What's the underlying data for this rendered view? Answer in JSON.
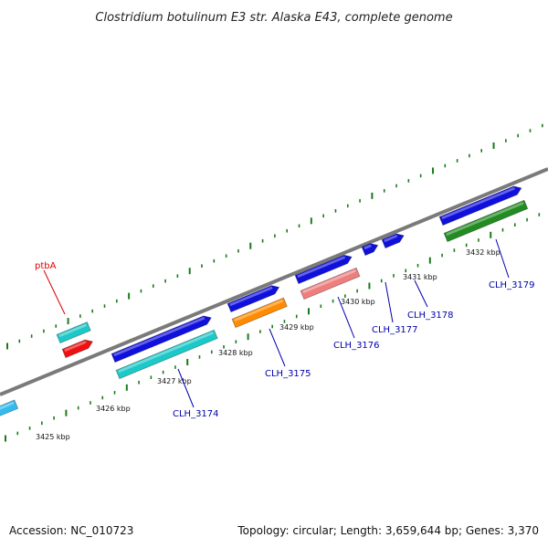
{
  "title": "Clostridium botulinum E3 str. Alaska E43, complete genome",
  "footer": {
    "accession": "Accession: NC_010723",
    "summary": "Topology: circular; Length: 3,659,644 bp; Genes: 3,370"
  },
  "scale": {
    "labels": [
      "3425 kbp",
      "3426 kbp",
      "3427 kbp",
      "3428 kbp",
      "3429 kbp",
      "3430 kbp",
      "3431 kbp",
      "3432 kbp"
    ]
  },
  "gene_labels": [
    {
      "text": "ptbA",
      "color": "#dd0000"
    },
    {
      "text": "CLH_3174",
      "color": "#0000aa"
    },
    {
      "text": "CLH_3175",
      "color": "#0000aa"
    },
    {
      "text": "CLH_3176",
      "color": "#0000aa"
    },
    {
      "text": "CLH_3177",
      "color": "#0000aa"
    },
    {
      "text": "CLH_3178",
      "color": "#0000aa"
    },
    {
      "text": "CLH_3179",
      "color": "#0000aa"
    }
  ],
  "colors": {
    "backbone": "#7a7a7a",
    "ticks": "#1a7a1a",
    "blue": "#1010dd",
    "cyan": "#1cc8c8",
    "red": "#ee1111",
    "orange": "#ff8c00",
    "pink": "#ee7e7e",
    "green": "#228b22",
    "lightblue": "#33bbee"
  }
}
